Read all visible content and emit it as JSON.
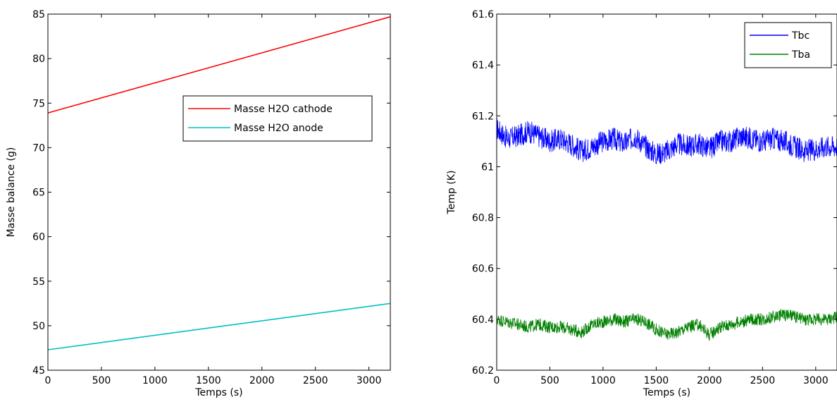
{
  "chart_data": [
    {
      "type": "line",
      "xlabel": "Temps (s)",
      "ylabel": "Masse balance (g)",
      "xlim": [
        0,
        3200
      ],
      "ylim": [
        45,
        85
      ],
      "xticks": [
        0,
        500,
        1000,
        1500,
        2000,
        2500,
        3000
      ],
      "yticks": [
        45,
        50,
        55,
        60,
        65,
        70,
        75,
        80,
        85
      ],
      "legend_position": "center-right",
      "series": [
        {
          "name": "Masse H2O cathode",
          "color": "#ff0000",
          "x": [
            0,
            3200
          ],
          "y": [
            73.9,
            84.7
          ]
        },
        {
          "name": "Masse H2O anode",
          "color": "#00bfbf",
          "x": [
            0,
            3200
          ],
          "y": [
            47.3,
            52.5
          ]
        }
      ]
    },
    {
      "type": "line",
      "xlabel": "Temps (s)",
      "ylabel": "Temp (K)",
      "xlim": [
        0,
        3200
      ],
      "ylim": [
        60.2,
        61.6
      ],
      "xticks": [
        0,
        500,
        1000,
        1500,
        2000,
        2500,
        3000
      ],
      "yticks": [
        60.2,
        60.4,
        60.6,
        60.8,
        61,
        61.2,
        61.4,
        61.6
      ],
      "legend_position": "top-right",
      "series": [
        {
          "name": "Tbc",
          "color": "#0000ff",
          "x": [
            0,
            100,
            200,
            300,
            400,
            500,
            600,
            700,
            800,
            900,
            1000,
            1100,
            1200,
            1300,
            1400,
            1500,
            1600,
            1700,
            1800,
            1900,
            2000,
            2100,
            2200,
            2300,
            2400,
            2500,
            2600,
            2700,
            2800,
            2900,
            3000,
            3100,
            3200
          ],
          "y": [
            61.15,
            61.11,
            61.12,
            61.14,
            61.12,
            61.1,
            61.11,
            61.09,
            61.06,
            61.08,
            61.1,
            61.11,
            61.09,
            61.12,
            61.08,
            61.05,
            61.06,
            61.09,
            61.08,
            61.09,
            61.07,
            61.1,
            61.1,
            61.12,
            61.11,
            61.1,
            61.11,
            61.1,
            61.08,
            61.06,
            61.07,
            61.08,
            61.08
          ]
        },
        {
          "name": "Tba",
          "color": "#008000",
          "x": [
            0,
            100,
            200,
            300,
            400,
            500,
            600,
            700,
            800,
            900,
            1000,
            1100,
            1200,
            1300,
            1400,
            1500,
            1600,
            1700,
            1800,
            1900,
            2000,
            2100,
            2200,
            2300,
            2400,
            2500,
            2600,
            2700,
            2800,
            2900,
            3000,
            3100,
            3200
          ],
          "y": [
            60.4,
            60.39,
            60.38,
            60.37,
            60.38,
            60.37,
            60.37,
            60.36,
            60.35,
            60.38,
            60.39,
            60.4,
            60.39,
            60.4,
            60.39,
            60.36,
            60.34,
            60.35,
            60.37,
            60.38,
            60.34,
            60.37,
            60.38,
            60.39,
            60.4,
            60.4,
            60.41,
            60.42,
            60.41,
            60.4,
            60.4,
            60.4,
            60.41
          ]
        }
      ]
    }
  ]
}
